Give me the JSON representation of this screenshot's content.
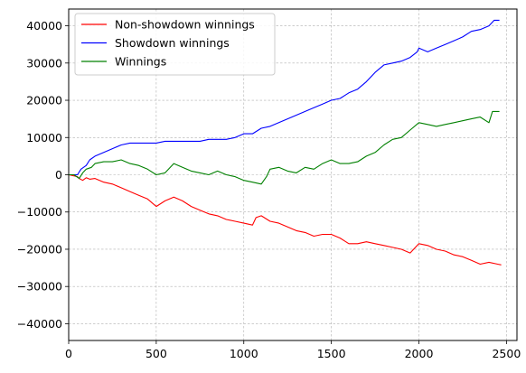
{
  "chart_data": {
    "type": "line",
    "title": "",
    "xlabel": "",
    "ylabel": "",
    "xlim": [
      0,
      2560
    ],
    "ylim": [
      -44500,
      44500
    ],
    "grid": true,
    "legend_position": "top-left",
    "x_ticks": [
      0,
      500,
      1000,
      1500,
      2000,
      2500
    ],
    "y_ticks": [
      -40000,
      -30000,
      -20000,
      -10000,
      0,
      10000,
      20000,
      30000,
      40000
    ],
    "x_tick_labels": [
      "0",
      "500",
      "1000",
      "1500",
      "2000",
      "2500"
    ],
    "y_tick_labels": [
      "−40000",
      "−30000",
      "−20000",
      "−10000",
      "0",
      "10000",
      "20000",
      "30000",
      "40000"
    ],
    "series": [
      {
        "name": "Non-showdown winnings",
        "color": "#ff0000",
        "x": [
          0,
          50,
          60,
          80,
          100,
          120,
          150,
          200,
          250,
          300,
          350,
          400,
          450,
          500,
          550,
          600,
          650,
          700,
          750,
          800,
          850,
          900,
          950,
          1000,
          1050,
          1070,
          1100,
          1150,
          1200,
          1250,
          1300,
          1350,
          1400,
          1450,
          1500,
          1550,
          1600,
          1650,
          1700,
          1750,
          1800,
          1850,
          1900,
          1950,
          2000,
          2050,
          2100,
          2150,
          2200,
          2250,
          2300,
          2350,
          2400,
          2450,
          2470
        ],
        "y": [
          0,
          -500,
          -1000,
          -1500,
          -800,
          -1200,
          -1000,
          -2000,
          -2500,
          -3500,
          -4500,
          -5500,
          -6500,
          -8500,
          -7000,
          -6000,
          -7000,
          -8500,
          -9500,
          -10500,
          -11000,
          -12000,
          -12500,
          -13000,
          -13500,
          -11500,
          -11000,
          -12500,
          -13000,
          -14000,
          -15000,
          -15500,
          -16500,
          -16000,
          -16000,
          -17000,
          -18500,
          -18500,
          -18000,
          -18500,
          -19000,
          -19500,
          -20000,
          -21000,
          -18500,
          -19000,
          -20000,
          -20500,
          -21500,
          -22000,
          -23000,
          -24000,
          -23500,
          -24000,
          -24200
        ]
      },
      {
        "name": "Showdown winnings",
        "color": "#0000ff",
        "x": [
          0,
          50,
          70,
          100,
          120,
          150,
          200,
          250,
          300,
          350,
          400,
          450,
          500,
          550,
          600,
          650,
          700,
          750,
          800,
          850,
          900,
          950,
          1000,
          1050,
          1100,
          1150,
          1200,
          1250,
          1300,
          1350,
          1400,
          1450,
          1500,
          1550,
          1600,
          1650,
          1700,
          1750,
          1800,
          1850,
          1900,
          1950,
          1990,
          2000,
          2050,
          2100,
          2150,
          2200,
          2250,
          2300,
          2350,
          2400,
          2430,
          2460
        ],
        "y": [
          0,
          0,
          1500,
          2500,
          4000,
          5000,
          6000,
          7000,
          8000,
          8500,
          8500,
          8500,
          8500,
          9000,
          9000,
          9000,
          9000,
          9000,
          9500,
          9500,
          9500,
          10000,
          11000,
          11000,
          12500,
          13000,
          14000,
          15000,
          16000,
          17000,
          18000,
          19000,
          20000,
          20500,
          22000,
          23000,
          25000,
          27500,
          29500,
          30000,
          30500,
          31500,
          33000,
          34000,
          33000,
          34000,
          35000,
          36000,
          37000,
          38500,
          39000,
          40000,
          41500,
          41500
        ]
      },
      {
        "name": "Winnings",
        "color": "#008000",
        "x": [
          0,
          30,
          60,
          80,
          100,
          130,
          150,
          200,
          250,
          300,
          350,
          400,
          450,
          500,
          550,
          600,
          650,
          700,
          750,
          800,
          850,
          900,
          950,
          1000,
          1050,
          1100,
          1130,
          1150,
          1200,
          1250,
          1300,
          1350,
          1400,
          1450,
          1500,
          1550,
          1600,
          1650,
          1700,
          1750,
          1800,
          1850,
          1900,
          1950,
          2000,
          2050,
          2100,
          2150,
          2200,
          2250,
          2300,
          2350,
          2400,
          2420,
          2460
        ],
        "y": [
          0,
          0,
          -1000,
          500,
          1500,
          2000,
          3000,
          3500,
          3500,
          4000,
          3000,
          2500,
          1500,
          0,
          500,
          3000,
          2000,
          1000,
          500,
          0,
          1000,
          0,
          -500,
          -1500,
          -2000,
          -2500,
          -500,
          1500,
          2000,
          1000,
          500,
          2000,
          1500,
          3000,
          4000,
          3000,
          3000,
          3500,
          5000,
          6000,
          8000,
          9500,
          10000,
          12000,
          14000,
          13500,
          13000,
          13500,
          14000,
          14500,
          15000,
          15500,
          14000,
          17000,
          17000
        ]
      }
    ]
  }
}
